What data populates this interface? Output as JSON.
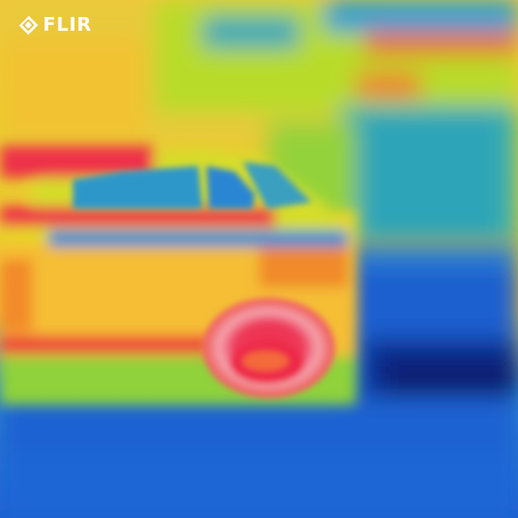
{
  "logo": {
    "brand": "FLIR",
    "icon": "flir-diamond-logo-icon",
    "color": "#ffffff"
  },
  "scene": {
    "subject": "thermal-image-car-side-view",
    "palette": [
      "#0b1a6e",
      "#1f5fd0",
      "#2aa6c8",
      "#6fd23a",
      "#d8e020",
      "#f5c32a",
      "#f07a2a",
      "#ee2a48",
      "#f2a0a8"
    ]
  }
}
